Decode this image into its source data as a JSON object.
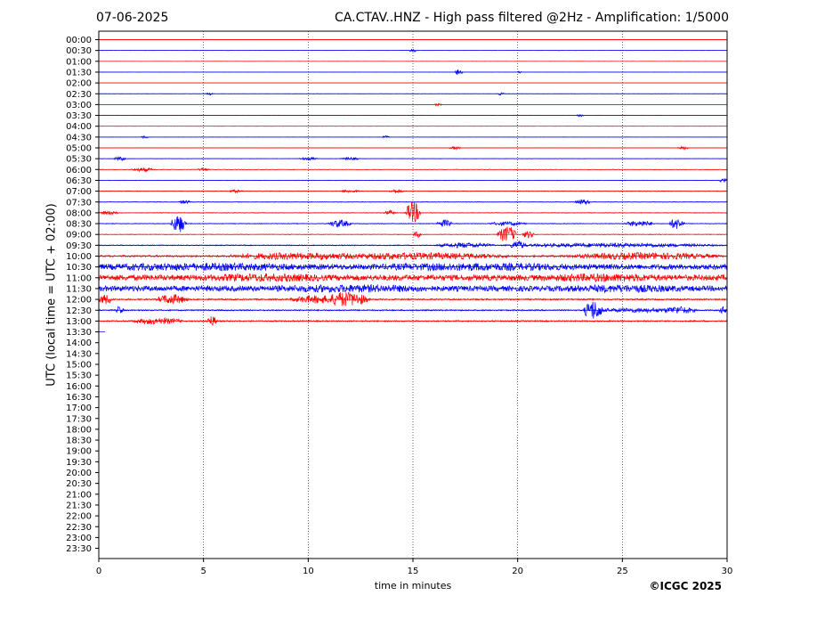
{
  "header": {
    "date": "07-06-2025",
    "title": "CA.CTAV..HNZ - High pass filtered @2Hz - Amplification: 1/5000"
  },
  "footer": {
    "copyright": "©ICGC 2025"
  },
  "chart_data": {
    "type": "line",
    "subtype": "helicorder",
    "xlabel": "time in minutes",
    "ylabel": "UTC (local time = UTC + 02:00)",
    "xlim": [
      0,
      30
    ],
    "xticks": [
      0,
      5,
      10,
      15,
      20,
      25,
      30
    ],
    "row_labels": [
      "00:00",
      "00:30",
      "01:00",
      "01:30",
      "02:00",
      "02:30",
      "03:00",
      "03:30",
      "04:00",
      "04:30",
      "05:00",
      "05:30",
      "06:00",
      "06:30",
      "07:00",
      "07:30",
      "08:00",
      "08:30",
      "09:00",
      "09:30",
      "10:00",
      "10:30",
      "11:00",
      "11:30",
      "12:00",
      "12:30",
      "13:00",
      "13:30",
      "14:00",
      "14:30",
      "15:00",
      "15:30",
      "16:00",
      "16:30",
      "17:00",
      "17:30",
      "18:00",
      "18:30",
      "19:00",
      "19:30",
      "20:00",
      "20:30",
      "21:00",
      "21:30",
      "22:00",
      "22:30",
      "23:00",
      "23:30"
    ],
    "grid": "vertical dotted lines at 5-minute intervals",
    "colors": {
      "even_rows": "#ff0000",
      "odd_rows": "#0000ff",
      "grid": "#000000"
    },
    "last_row_partial_minutes": 0.3,
    "traces": [
      {
        "time": "00:00",
        "noise": 0.06,
        "bursts": []
      },
      {
        "time": "00:30",
        "noise": 0.08,
        "bursts": [
          [
            15.0,
            0.2,
            2.0
          ]
        ]
      },
      {
        "time": "01:00",
        "noise": 0.05,
        "bursts": []
      },
      {
        "time": "01:30",
        "noise": 0.08,
        "bursts": [
          [
            17.2,
            0.2,
            4.0
          ],
          [
            20.1,
            0.1,
            1.5
          ]
        ]
      },
      {
        "time": "02:00",
        "noise": 0.05,
        "bursts": []
      },
      {
        "time": "02:30",
        "noise": 0.1,
        "bursts": [
          [
            5.3,
            0.2,
            1.5
          ],
          [
            19.2,
            0.2,
            1.5
          ]
        ]
      },
      {
        "time": "03:00",
        "noise": 0.06,
        "bursts": [
          [
            16.2,
            0.2,
            1.5
          ]
        ]
      },
      {
        "time": "03:30",
        "noise": 0.08,
        "bursts": [
          [
            23.0,
            0.2,
            1.5
          ]
        ]
      },
      {
        "time": "04:00",
        "noise": 0.05,
        "bursts": []
      },
      {
        "time": "04:30",
        "noise": 0.1,
        "bursts": [
          [
            2.2,
            0.2,
            1.5
          ],
          [
            13.7,
            0.2,
            1.5
          ]
        ]
      },
      {
        "time": "05:00",
        "noise": 0.12,
        "bursts": [
          [
            17.0,
            0.3,
            2.0
          ],
          [
            27.9,
            0.3,
            2.0
          ]
        ]
      },
      {
        "time": "05:30",
        "noise": 0.2,
        "bursts": [
          [
            1.0,
            0.3,
            2.5
          ],
          [
            10.0,
            0.5,
            1.5
          ],
          [
            12.0,
            0.5,
            1.5
          ]
        ]
      },
      {
        "time": "06:00",
        "noise": 0.3,
        "bursts": [
          [
            2.1,
            0.6,
            2.0
          ],
          [
            5.0,
            0.3,
            1.5
          ]
        ]
      },
      {
        "time": "06:30",
        "noise": 0.25,
        "bursts": [
          [
            29.8,
            0.2,
            3.0
          ]
        ]
      },
      {
        "time": "07:00",
        "noise": 0.3,
        "bursts": [
          [
            6.5,
            0.4,
            1.5
          ],
          [
            12.0,
            0.5,
            1.5
          ],
          [
            14.2,
            0.4,
            2.0
          ]
        ]
      },
      {
        "time": "07:30",
        "noise": 0.3,
        "bursts": [
          [
            4.1,
            0.3,
            2.0
          ],
          [
            23.1,
            0.4,
            3.0
          ]
        ]
      },
      {
        "time": "08:00",
        "noise": 0.35,
        "bursts": [
          [
            0.5,
            0.5,
            2.0
          ],
          [
            13.9,
            0.3,
            2.5
          ],
          [
            15.0,
            0.4,
            12.0
          ]
        ]
      },
      {
        "time": "08:30",
        "noise": 0.4,
        "bursts": [
          [
            3.8,
            0.4,
            10.0
          ],
          [
            11.5,
            0.6,
            4.0
          ],
          [
            16.5,
            0.4,
            4.0
          ],
          [
            19.5,
            1.0,
            2.0
          ],
          [
            25.8,
            0.8,
            3.0
          ],
          [
            27.6,
            0.4,
            6.0
          ]
        ]
      },
      {
        "time": "09:00",
        "noise": 0.35,
        "bursts": [
          [
            15.2,
            0.2,
            4.0
          ],
          [
            19.5,
            0.5,
            9.0
          ],
          [
            20.5,
            0.3,
            4.0
          ]
        ]
      },
      {
        "time": "09:30",
        "noise": 0.5,
        "bursts": [
          [
            17.5,
            1.5,
            2.5
          ],
          [
            20.0,
            0.4,
            4.0
          ],
          [
            24.5,
            5.5,
            2.0
          ]
        ]
      },
      {
        "time": "10:00",
        "noise": 1.0,
        "bursts": [
          [
            9.0,
            3.0,
            3.0
          ],
          [
            15.0,
            5.0,
            3.0
          ],
          [
            26.0,
            4.0,
            3.0
          ]
        ]
      },
      {
        "time": "10:30",
        "noise": 3.0,
        "bursts": [
          [
            5.0,
            5.0,
            1.5
          ],
          [
            18.0,
            5.0,
            1.5
          ]
        ]
      },
      {
        "time": "11:00",
        "noise": 3.2,
        "bursts": [
          [
            8.0,
            3.0,
            1.5
          ],
          [
            24.0,
            3.0,
            1.5
          ]
        ]
      },
      {
        "time": "11:30",
        "noise": 3.0,
        "bursts": [
          [
            12.0,
            4.0,
            1.5
          ],
          [
            25.0,
            3.0,
            1.5
          ]
        ]
      },
      {
        "time": "12:00",
        "noise": 0.8,
        "bursts": [
          [
            0.3,
            0.4,
            5.0
          ],
          [
            3.5,
            0.8,
            5.0
          ],
          [
            10.5,
            1.5,
            4.0
          ],
          [
            12.0,
            1.0,
            7.0
          ]
        ]
      },
      {
        "time": "12:30",
        "noise": 0.7,
        "bursts": [
          [
            1.0,
            0.2,
            4.0
          ],
          [
            23.6,
            0.5,
            10.0
          ],
          [
            25.8,
            2.5,
            2.0
          ],
          [
            27.8,
            0.8,
            3.0
          ],
          [
            29.9,
            0.3,
            4.0
          ]
        ]
      },
      {
        "time": "13:00",
        "noise": 0.7,
        "bursts": [
          [
            2.8,
            1.3,
            3.0
          ],
          [
            5.4,
            0.3,
            5.0
          ]
        ]
      },
      {
        "time": "13:30",
        "noise": 0.03,
        "bursts": []
      }
    ]
  }
}
